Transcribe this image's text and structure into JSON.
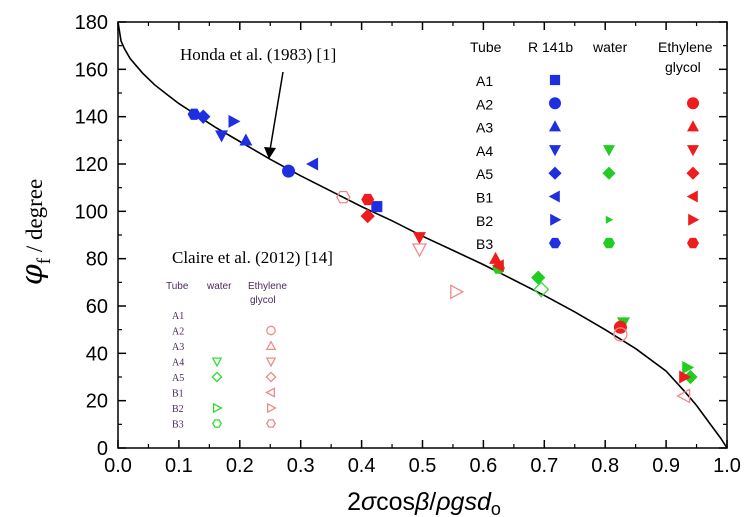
{
  "chart_data": {
    "type": "scatter",
    "ylabel_symbol": "φ",
    "ylabel_sub": "f",
    "ylabel_unit": " / degree",
    "xlabel_parts": [
      "2",
      "σ",
      "cos",
      "β",
      "/",
      "ρgsd",
      "o"
    ],
    "xlim": [
      0.0,
      1.0
    ],
    "ylim": [
      0,
      180
    ],
    "x_ticks": [
      "0.0",
      "0.1",
      "0.2",
      "0.3",
      "0.4",
      "0.5",
      "0.6",
      "0.7",
      "0.8",
      "0.9",
      "1.0"
    ],
    "y_ticks": [
      "0",
      "20",
      "40",
      "60",
      "80",
      "100",
      "120",
      "140",
      "160",
      "180"
    ],
    "curve": {
      "label": "Honda et al. (1983) [1]",
      "points": [
        [
          0.0,
          180
        ],
        [
          0.005,
          172
        ],
        [
          0.01,
          169
        ],
        [
          0.02,
          164.5
        ],
        [
          0.04,
          158.5
        ],
        [
          0.06,
          153.5
        ],
        [
          0.08,
          149.5
        ],
        [
          0.1,
          145.5
        ],
        [
          0.13,
          140.5
        ],
        [
          0.16,
          135.5
        ],
        [
          0.2,
          129.5
        ],
        [
          0.25,
          122
        ],
        [
          0.3,
          115
        ],
        [
          0.35,
          108.5
        ],
        [
          0.4,
          102
        ],
        [
          0.45,
          96
        ],
        [
          0.5,
          89.5
        ],
        [
          0.55,
          83.5
        ],
        [
          0.6,
          77.5
        ],
        [
          0.65,
          71
        ],
        [
          0.7,
          64.5
        ],
        [
          0.75,
          57.5
        ],
        [
          0.8,
          50
        ],
        [
          0.85,
          42
        ],
        [
          0.9,
          32.5
        ],
        [
          0.93,
          24
        ],
        [
          0.95,
          18
        ],
        [
          0.97,
          11
        ],
        [
          0.99,
          4
        ],
        [
          1.0,
          0
        ]
      ]
    },
    "legend_main": {
      "header": [
        "Tube",
        "R 141b",
        "water",
        "Ethylene",
        "glycol"
      ],
      "tubes": [
        "A1",
        "A2",
        "A3",
        "A4",
        "A5",
        "B1",
        "B2",
        "B3"
      ],
      "fluids": [
        "R 141b",
        "water",
        "Ethylene glycol"
      ]
    },
    "legend_claire": {
      "title": "Claire et al. (2012) [14]",
      "header": [
        "Tube",
        "water",
        "Ethylene",
        "glycol"
      ],
      "tubes": [
        "A1",
        "A2",
        "A3",
        "A4",
        "A5",
        "B1",
        "B2",
        "B3"
      ],
      "water_rows": [
        "A4",
        "A5",
        "B2",
        "B3"
      ],
      "glycol_rows": [
        "A2",
        "A3",
        "A4",
        "A5",
        "B1",
        "B2",
        "B3"
      ]
    },
    "marker_by_tube": {
      "A1": "square",
      "A2": "circle",
      "A3": "triangle-up",
      "A4": "triangle-down",
      "A5": "diamond",
      "B1": "triangle-left",
      "B2": "triangle-right",
      "B3": "hexagon"
    },
    "colors": {
      "R 141b": "#1f2fe0",
      "water": "#22cc22",
      "Ethylene glycol": "#ee1c1c",
      "claire_water": "#33dd33",
      "claire_glycol": "#f08a8a",
      "curve": "#000000"
    },
    "series": [
      {
        "fluid": "R 141b",
        "points": [
          {
            "tube": "A1",
            "x": 0.425,
            "y": 102
          },
          {
            "tube": "A2",
            "x": 0.28,
            "y": 117
          },
          {
            "tube": "A3",
            "x": 0.21,
            "y": 130
          },
          {
            "tube": "A4",
            "x": 0.17,
            "y": 132
          },
          {
            "tube": "A5",
            "x": 0.14,
            "y": 140
          },
          {
            "tube": "B1",
            "x": 0.32,
            "y": 120
          },
          {
            "tube": "B2",
            "x": 0.19,
            "y": 138
          },
          {
            "tube": "B3",
            "x": 0.125,
            "y": 141
          }
        ]
      },
      {
        "fluid": "water",
        "points": [
          {
            "tube": "A4",
            "x": 0.83,
            "y": 53
          },
          {
            "tube": "A5",
            "x": 0.69,
            "y": 72
          },
          {
            "tube": "B2",
            "x": 0.935,
            "y": 34
          },
          {
            "tube": "B3",
            "x": 0.625,
            "y": 76
          },
          {
            "tube": "A5",
            "x": 0.94,
            "y": 30
          }
        ]
      },
      {
        "fluid": "Ethylene glycol",
        "points": [
          {
            "tube": "A2",
            "x": 0.825,
            "y": 51
          },
          {
            "tube": "A3",
            "x": 0.62,
            "y": 80
          },
          {
            "tube": "A4",
            "x": 0.495,
            "y": 89
          },
          {
            "tube": "A5",
            "x": 0.41,
            "y": 98
          },
          {
            "tube": "B1",
            "x": 0.625,
            "y": 77
          },
          {
            "tube": "B2",
            "x": 0.93,
            "y": 30
          },
          {
            "tube": "B3",
            "x": 0.41,
            "y": 105
          }
        ]
      },
      {
        "fluid": "Claire water",
        "points": [
          {
            "tube": "A5",
            "x": 0.695,
            "y": 67
          }
        ]
      },
      {
        "fluid": "Claire glycol",
        "points": [
          {
            "tube": "A2",
            "x": 0.825,
            "y": 48
          },
          {
            "tube": "A4",
            "x": 0.495,
            "y": 84
          },
          {
            "tube": "B1",
            "x": 0.93,
            "y": 22
          },
          {
            "tube": "B2",
            "x": 0.555,
            "y": 66
          },
          {
            "tube": "B3",
            "x": 0.37,
            "y": 106
          }
        ]
      }
    ]
  }
}
